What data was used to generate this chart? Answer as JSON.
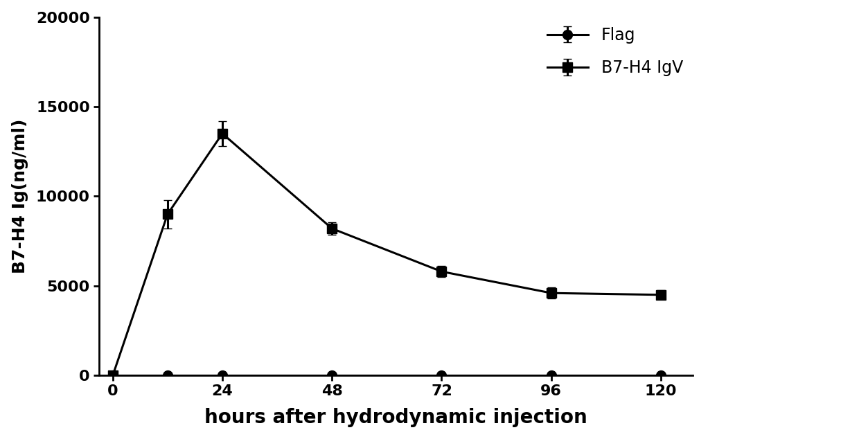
{
  "x": [
    0,
    12,
    24,
    48,
    72,
    96,
    120
  ],
  "flag_y": [
    0,
    0,
    0,
    0,
    0,
    0,
    0
  ],
  "flag_yerr": [
    0,
    0,
    0,
    0,
    0,
    0,
    0
  ],
  "b7h4_y": [
    0,
    9000,
    13500,
    8200,
    5800,
    4600,
    4500
  ],
  "b7h4_yerr": [
    0,
    800,
    700,
    350,
    300,
    300,
    250
  ],
  "xlabel": "hours after hydrodynamic injection",
  "ylabel": "B7-H4 Ig(ng/ml)",
  "xlim": [
    -3,
    127
  ],
  "ylim": [
    0,
    20000
  ],
  "yticks": [
    0,
    5000,
    10000,
    15000,
    20000
  ],
  "xticks": [
    0,
    24,
    48,
    72,
    96,
    120
  ],
  "legend_flag": "Flag",
  "legend_b7h4": "B7-H4 IgV",
  "line_color": "#000000",
  "bg_color": "#ffffff",
  "marker_flag": "o",
  "marker_b7h4": "s",
  "marker_size": 10,
  "linewidth": 2.2,
  "capsize": 4,
  "xlabel_fontsize": 20,
  "ylabel_fontsize": 18,
  "tick_fontsize": 16,
  "legend_fontsize": 17
}
